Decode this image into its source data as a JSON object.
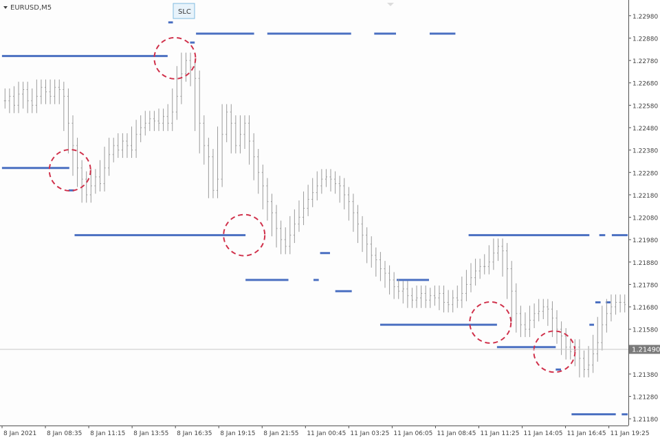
{
  "chart_data": {
    "type": "bar",
    "symbol": "EURUSD,M5",
    "indicator_button": "SLC",
    "y_ticks": [
      "1.22980",
      "1.22880",
      "1.22780",
      "1.22680",
      "1.22580",
      "1.22480",
      "1.22380",
      "1.22280",
      "1.22180",
      "1.22080",
      "1.21980",
      "1.21880",
      "1.21780",
      "1.21680",
      "1.21580",
      "1.21490",
      "1.21380",
      "1.21280",
      "1.21180"
    ],
    "current_price": "1.21490",
    "ylim": [
      1.2115,
      1.2305
    ],
    "x_labels": [
      "8 Jan 2021",
      "8 Jan 08:35",
      "8 Jan 11:15",
      "8 Jan 13:55",
      "8 Jan 16:35",
      "8 Jan 19:15",
      "8 Jan 21:55",
      "11 Jan 00:45",
      "11 Jan 03:25",
      "11 Jan 06:05",
      "11 Jan 08:45",
      "11 Jan 11:25",
      "11 Jan 14:05",
      "11 Jan 16:45",
      "11 Jan 19:25"
    ],
    "series": [
      {
        "name": "",
        "values": [
          1.226,
          1.2262,
          1.2258,
          1.2263,
          1.2265,
          1.226,
          1.2258,
          1.2262,
          1.2266,
          1.2264,
          1.2262,
          1.2266,
          1.2265,
          1.2262,
          1.225,
          1.224,
          1.223,
          1.2225,
          1.2218,
          1.2222,
          1.2226,
          1.2223,
          1.223,
          1.2236,
          1.224,
          1.2238,
          1.2242,
          1.224,
          1.2238,
          1.2245,
          1.2248,
          1.225,
          1.2252,
          1.2251,
          1.225,
          1.2253,
          1.225,
          1.2255,
          1.2262,
          1.2272,
          1.2278,
          1.2275,
          1.227,
          1.225,
          1.224,
          1.2235,
          1.222,
          1.2225,
          1.2245,
          1.2255,
          1.225,
          1.224,
          1.2245,
          1.225,
          1.2242,
          1.2235,
          1.2228,
          1.2222,
          1.2215,
          1.221,
          1.2203,
          1.2198,
          1.2195,
          1.22,
          1.2205,
          1.2208,
          1.2212,
          1.2216,
          1.2219,
          1.2222,
          1.2225,
          1.2226,
          1.2225,
          1.2223,
          1.2222,
          1.2218,
          1.2215,
          1.221,
          1.2205,
          1.22,
          1.2196,
          1.2191,
          1.2189,
          1.2185,
          1.2183,
          1.218,
          1.2177,
          1.2175,
          1.2176,
          1.2173,
          1.2171,
          1.2172,
          1.2174,
          1.2171,
          1.2173,
          1.2172,
          1.2174,
          1.217,
          1.2169,
          1.2172,
          1.2171,
          1.2174,
          1.2178,
          1.2181,
          1.2184,
          1.2186,
          1.2186,
          1.2188,
          1.2192,
          1.2195,
          1.2193,
          1.2185,
          1.2175,
          1.2165,
          1.216,
          1.2158,
          1.2162,
          1.2165,
          1.2166,
          1.2168,
          1.2167,
          1.2163,
          1.2158,
          1.2155,
          1.215,
          1.2148,
          1.215,
          1.2145,
          1.214,
          1.2142,
          1.2147,
          1.2152,
          1.216,
          1.2165,
          1.2168,
          1.217,
          1.217,
          1.2169
        ]
      }
    ],
    "levels": [
      {
        "y": 1.229,
        "segments": [
          [
            0.297,
            0.385
          ],
          [
            0.405,
            0.532
          ],
          [
            0.567,
            0.6
          ],
          [
            0.651,
            0.69
          ]
        ]
      },
      {
        "y": 1.2286,
        "segments": [
          [
            0.288,
            0.295
          ]
        ]
      },
      {
        "y": 1.228,
        "segments": [
          [
            0.003,
            0.254
          ]
        ]
      },
      {
        "y": 1.2295,
        "segments": [
          [
            0.255,
            0.262
          ]
        ]
      },
      {
        "y": 1.223,
        "segments": [
          [
            0.003,
            0.105
          ]
        ]
      },
      {
        "y": 1.222,
        "segments": [
          [
            0.104,
            0.112
          ]
        ]
      },
      {
        "y": 1.22,
        "segments": [
          [
            0.113,
            0.372
          ]
        ]
      },
      {
        "y": 1.2192,
        "segments": [
          [
            0.485,
            0.5
          ]
        ]
      },
      {
        "y": 1.218,
        "segments": [
          [
            0.372,
            0.437
          ],
          [
            0.475,
            0.483
          ],
          [
            0.601,
            0.65
          ]
        ]
      },
      {
        "y": 1.2175,
        "segments": [
          [
            0.508,
            0.533
          ]
        ]
      },
      {
        "y": 1.216,
        "segments": [
          [
            0.576,
            0.753
          ]
        ]
      },
      {
        "y": 1.215,
        "segments": [
          [
            0.753,
            0.842
          ]
        ]
      },
      {
        "y": 1.214,
        "segments": [
          [
            0.842,
            0.85
          ]
        ]
      },
      {
        "y": 1.22,
        "segments": [
          [
            0.71,
            0.893
          ],
          [
            0.908,
            0.917
          ],
          [
            0.927,
            0.951
          ]
        ]
      },
      {
        "y": 1.216,
        "segments": [
          [
            0.893,
            0.9
          ]
        ]
      },
      {
        "y": 1.217,
        "segments": [
          [
            0.902,
            0.91
          ],
          [
            0.918,
            0.925
          ]
        ]
      },
      {
        "y": 1.212,
        "segments": [
          [
            0.866,
            0.933
          ],
          [
            0.942,
            0.951
          ]
        ]
      }
    ],
    "markers": [
      {
        "x": 0.265,
        "y": 1.2279
      },
      {
        "x": 0.106,
        "y": 1.2229
      },
      {
        "x": 0.37,
        "y": 1.22
      },
      {
        "x": 0.743,
        "y": 1.2161
      },
      {
        "x": 0.84,
        "y": 1.2148
      }
    ],
    "colors": {
      "level": "#4a6fc1",
      "bar": "#9a9a9a",
      "marker": "#d0304a",
      "axis": "#505050"
    }
  }
}
